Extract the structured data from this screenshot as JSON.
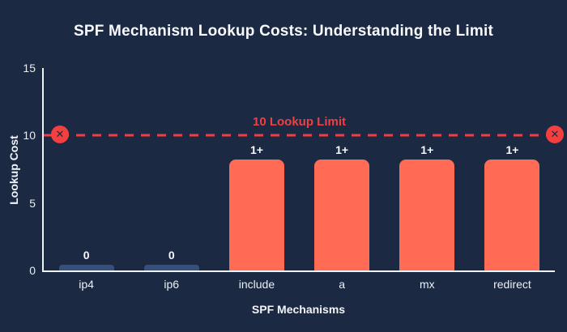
{
  "chart_data": {
    "type": "bar",
    "title": "SPF Mechanism Lookup Costs: Understanding the Limit",
    "xlabel": "SPF Mechanisms",
    "ylabel": "Lookup Cost",
    "ylim": [
      0,
      15
    ],
    "yticks": [
      0,
      5,
      10,
      15
    ],
    "grid": false,
    "legend": "none",
    "categories": [
      "ip4",
      "ip6",
      "include",
      "a",
      "mx",
      "redirect"
    ],
    "values": [
      0,
      0,
      1,
      1,
      1,
      1
    ],
    "bar_value_labels": [
      "0",
      "0",
      "1+",
      "1+",
      "1+",
      "1+"
    ],
    "bar_display_heights": [
      0.4,
      0.4,
      8.2,
      8.2,
      8.2,
      8.2
    ],
    "bar_colors": [
      "#35517b",
      "#35517b",
      "#ff6b55",
      "#ff6b55",
      "#ff6b55",
      "#ff6b55"
    ],
    "reference_line": {
      "value": 10,
      "label": "10 Lookup Limit",
      "color": "#ee4043",
      "style": "dashed",
      "end_markers": "x-circle",
      "marker_glyph": "✕"
    },
    "colors": {
      "background": "#1b2942",
      "axis": "#eef1f6",
      "text": "#f7f9fc",
      "limit": "#ee4043",
      "bar_main": "#ff6b55",
      "bar_zero": "#35517b"
    }
  }
}
